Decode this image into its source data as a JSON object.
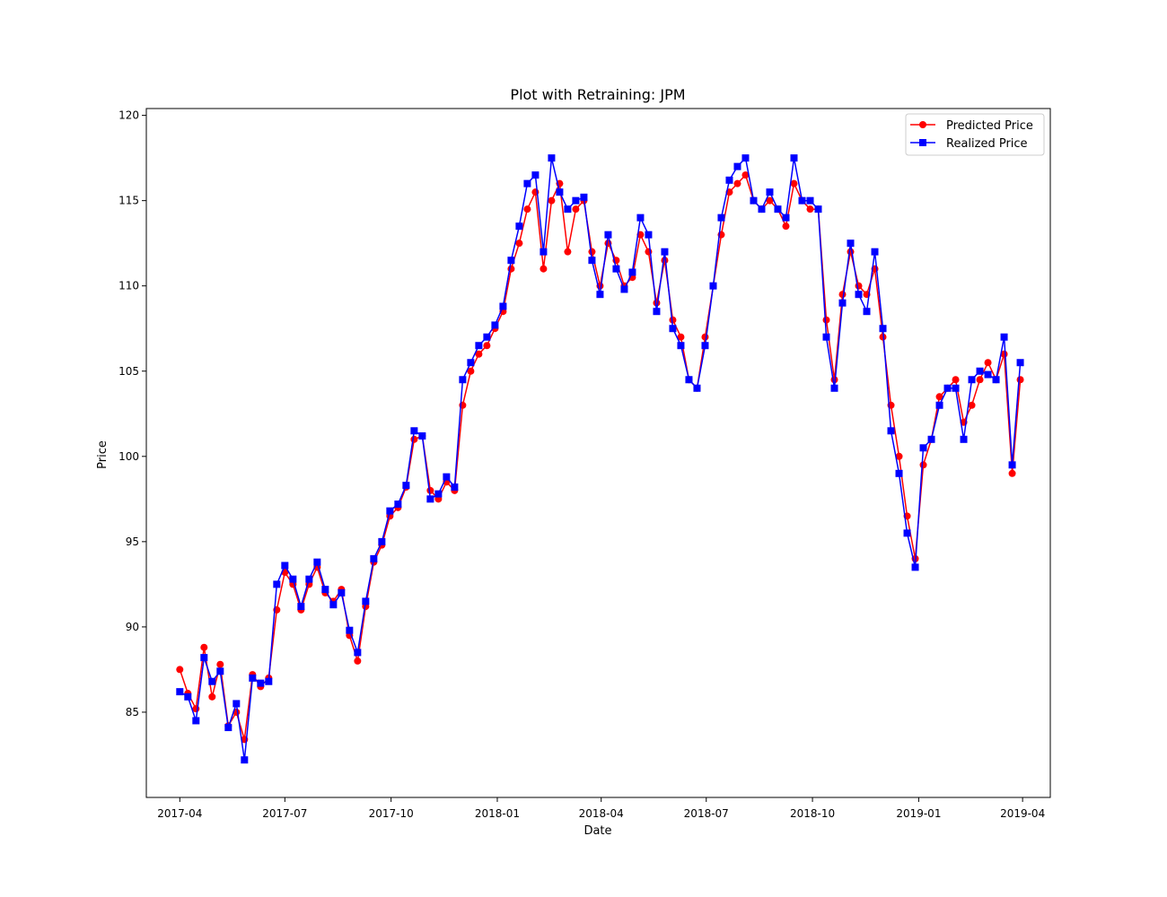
{
  "chart_data": {
    "type": "line",
    "title": "Plot with Retraining: JPM",
    "xlabel": "Date",
    "ylabel": "Price",
    "x_range": [
      "2017-03-03",
      "2019-04-25"
    ],
    "ylim": [
      80.0,
      120.4
    ],
    "x_ticks": [
      "2017-04-01",
      "2017-07-01",
      "2017-10-01",
      "2018-01-01",
      "2018-04-01",
      "2018-07-01",
      "2018-10-01",
      "2019-01-01",
      "2019-04-01"
    ],
    "x_tick_labels": [
      "2017-04",
      "2017-07",
      "2017-10",
      "2018-01",
      "2018-04",
      "2018-07",
      "2018-10",
      "2019-01",
      "2019-04"
    ],
    "y_ticks": [
      85,
      90,
      95,
      100,
      105,
      110,
      115,
      120
    ],
    "grid": false,
    "legend_position": "top-right",
    "x": [
      "2017-04-01",
      "2017-04-08",
      "2017-04-15",
      "2017-04-22",
      "2017-04-29",
      "2017-05-06",
      "2017-05-13",
      "2017-05-20",
      "2017-05-27",
      "2017-06-03",
      "2017-06-10",
      "2017-06-17",
      "2017-06-24",
      "2017-07-01",
      "2017-07-08",
      "2017-07-15",
      "2017-07-22",
      "2017-07-29",
      "2017-08-05",
      "2017-08-12",
      "2017-08-19",
      "2017-08-26",
      "2017-09-02",
      "2017-09-09",
      "2017-09-16",
      "2017-09-23",
      "2017-09-30",
      "2017-10-07",
      "2017-10-14",
      "2017-10-21",
      "2017-10-28",
      "2017-11-04",
      "2017-11-11",
      "2017-11-18",
      "2017-11-25",
      "2017-12-02",
      "2017-12-09",
      "2017-12-16",
      "2017-12-23",
      "2017-12-30",
      "2018-01-06",
      "2018-01-13",
      "2018-01-20",
      "2018-01-27",
      "2018-02-03",
      "2018-02-10",
      "2018-02-17",
      "2018-02-24",
      "2018-03-03",
      "2018-03-10",
      "2018-03-17",
      "2018-03-24",
      "2018-03-31",
      "2018-04-07",
      "2018-04-14",
      "2018-04-21",
      "2018-04-28",
      "2018-05-05",
      "2018-05-12",
      "2018-05-19",
      "2018-05-26",
      "2018-06-02",
      "2018-06-09",
      "2018-06-16",
      "2018-06-23",
      "2018-06-30",
      "2018-07-07",
      "2018-07-14",
      "2018-07-21",
      "2018-07-28",
      "2018-08-04",
      "2018-08-11",
      "2018-08-18",
      "2018-08-25",
      "2018-09-01",
      "2018-09-08",
      "2018-09-15",
      "2018-09-22",
      "2018-09-29",
      "2018-10-06",
      "2018-10-13",
      "2018-10-20",
      "2018-10-27",
      "2018-11-03",
      "2018-11-10",
      "2018-11-17",
      "2018-11-24",
      "2018-12-01",
      "2018-12-08",
      "2018-12-15",
      "2018-12-22",
      "2018-12-29",
      "2019-01-05",
      "2019-01-12",
      "2019-01-19",
      "2019-01-26",
      "2019-02-02",
      "2019-02-09",
      "2019-02-16",
      "2019-02-23",
      "2019-03-02",
      "2019-03-09",
      "2019-03-16",
      "2019-03-23",
      "2019-03-30"
    ],
    "series": [
      {
        "name": "Predicted Price",
        "color": "#ff0000",
        "marker": "circle",
        "values": [
          87.5,
          86.1,
          85.2,
          88.8,
          85.9,
          87.8,
          84.2,
          85.0,
          83.4,
          87.2,
          86.5,
          87.0,
          91.0,
          93.2,
          92.5,
          91.0,
          92.5,
          93.5,
          92.0,
          91.5,
          92.2,
          89.5,
          88.0,
          91.2,
          93.8,
          94.8,
          96.5,
          97.0,
          98.2,
          101.0,
          101.2,
          98.0,
          97.5,
          98.5,
          98.0,
          103.0,
          105.0,
          106.0,
          106.5,
          107.5,
          108.5,
          111.0,
          112.5,
          114.5,
          115.5,
          111.0,
          115.0,
          116.0,
          112.0,
          114.5,
          115.0,
          112.0,
          110.0,
          112.5,
          111.5,
          110.0,
          110.5,
          113.0,
          112.0,
          109.0,
          111.5,
          108.0,
          107.0,
          104.5,
          104.0,
          107.0,
          110.0,
          113.0,
          115.5,
          116.0,
          116.5,
          115.0,
          114.5,
          115.0,
          114.5,
          113.5,
          116.0,
          115.0,
          114.5,
          114.5,
          108.0,
          104.5,
          109.5,
          112.0,
          110.0,
          109.5,
          111.0,
          107.0,
          103.0,
          100.0,
          96.5,
          94.0,
          99.5,
          101.0,
          103.5,
          104.0,
          104.5,
          102.0,
          103.0,
          104.5,
          105.5,
          104.5,
          106.0,
          99.0,
          104.5
        ]
      },
      {
        "name": "Realized Price",
        "color": "#0000ff",
        "marker": "square",
        "values": [
          86.2,
          85.9,
          84.5,
          88.2,
          86.8,
          87.4,
          84.1,
          85.5,
          82.2,
          87.0,
          86.7,
          86.8,
          92.5,
          93.6,
          92.8,
          91.2,
          92.8,
          93.8,
          92.2,
          91.3,
          92.0,
          89.8,
          88.5,
          91.5,
          94.0,
          95.0,
          96.8,
          97.2,
          98.3,
          101.5,
          101.2,
          97.5,
          97.8,
          98.8,
          98.2,
          104.5,
          105.5,
          106.5,
          107.0,
          107.7,
          108.8,
          111.5,
          113.5,
          116.0,
          116.5,
          112.0,
          117.5,
          115.5,
          114.5,
          115.0,
          115.2,
          111.5,
          109.5,
          113.0,
          111.0,
          109.8,
          110.8,
          114.0,
          113.0,
          108.5,
          112.0,
          107.5,
          106.5,
          104.5,
          104.0,
          106.5,
          110.0,
          114.0,
          116.2,
          117.0,
          117.5,
          115.0,
          114.5,
          115.5,
          114.5,
          114.0,
          117.5,
          115.0,
          115.0,
          114.5,
          107.0,
          104.0,
          109.0,
          112.5,
          109.5,
          108.5,
          112.0,
          107.5,
          101.5,
          99.0,
          95.5,
          93.5,
          100.5,
          101.0,
          103.0,
          104.0,
          104.0,
          101.0,
          104.5,
          105.0,
          104.8,
          104.5,
          107.0,
          99.5,
          105.5
        ]
      }
    ]
  }
}
